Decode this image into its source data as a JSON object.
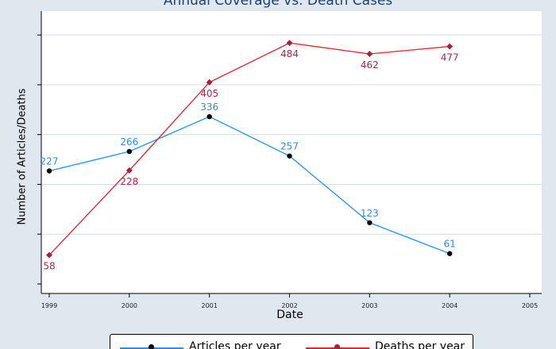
{
  "chart_data": {
    "type": "line",
    "title": "Annual Coverage vs. Death Cases",
    "xlabel": "Date",
    "ylabel": "Number of Articles/Deaths",
    "x": [
      1999,
      2000,
      2001,
      2002,
      2003,
      2004
    ],
    "xticks": [
      "1999",
      "2000",
      "2001",
      "2002",
      "2003",
      "2004",
      "2005"
    ],
    "xlim": [
      1999,
      2005
    ],
    "ylim": [
      0,
      540
    ],
    "grid": true,
    "legend_position": "bottom",
    "series": [
      {
        "name": "Articles per year",
        "values": [
          227,
          266,
          336,
          257,
          123,
          61
        ],
        "labels": [
          "227",
          "266",
          "336",
          "257",
          "123",
          "61"
        ],
        "color": "#1e90ff",
        "label_color": "#2e8be8",
        "marker_color": "#000000"
      },
      {
        "name": "Deaths per year",
        "values": [
          58,
          228,
          405,
          484,
          462,
          477
        ],
        "labels": [
          "58",
          "228",
          "405",
          "484",
          "462",
          "477"
        ],
        "color": "#e8202a",
        "label_color": "#b0244a",
        "marker_color": "#a8203c"
      }
    ]
  }
}
